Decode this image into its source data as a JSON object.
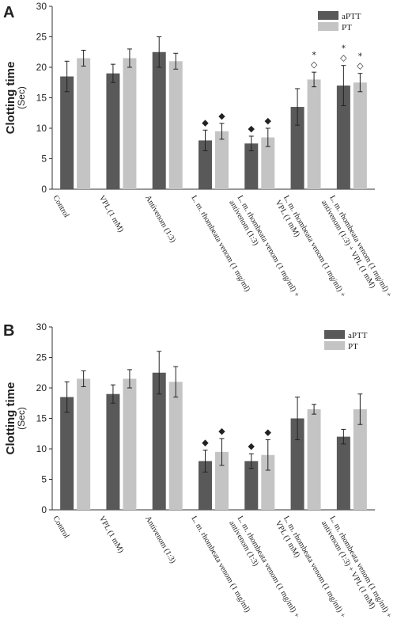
{
  "chart_data": [
    {
      "panel": "A",
      "type": "bar",
      "ylabel": "Clotting time",
      "yunit": "(Sec)",
      "ylim": [
        0,
        30
      ],
      "yticks": [
        0,
        5,
        10,
        15,
        20,
        25,
        30
      ],
      "legend_position": "top-right",
      "categories": [
        [
          "Control"
        ],
        [
          "VPL (1 mM)"
        ],
        [
          "Antivenom (1:3)"
        ],
        [
          "L. m. rhombeata venom (1 mg/ml)"
        ],
        [
          "L. m. rhombeata venom (1 mg/ml) +",
          "antivenom (1:3)"
        ],
        [
          "L. m. rhombeata venom (1 mg/ml) +",
          "VPL (1 mM)"
        ],
        [
          "L. m. rhombeata venom (1 mg/ml) +",
          "antivenom (1:3) + VPL (1 mM)"
        ]
      ],
      "series": [
        {
          "name": "aPTT",
          "color": "#595959",
          "values": [
            18.5,
            19.0,
            22.5,
            8.0,
            7.5,
            13.5,
            17.0
          ],
          "errors": [
            2.5,
            1.5,
            2.5,
            1.7,
            1.2,
            3.0,
            3.3
          ],
          "markers": [
            "",
            "",
            "",
            "◆",
            "◆",
            "",
            "* ◇"
          ]
        },
        {
          "name": "PT",
          "color": "#c4c4c4",
          "values": [
            21.5,
            21.5,
            21.0,
            9.5,
            8.5,
            18.0,
            17.5
          ],
          "errors": [
            1.3,
            1.5,
            1.3,
            1.3,
            1.5,
            1.2,
            1.5
          ],
          "markers": [
            "",
            "",
            "",
            "◆",
            "◆",
            "* ◇",
            "* ◇"
          ]
        }
      ]
    },
    {
      "panel": "B",
      "type": "bar",
      "ylabel": "Clotting time",
      "yunit": "(Sec)",
      "ylim": [
        0,
        30
      ],
      "yticks": [
        0,
        5,
        10,
        15,
        20,
        25,
        30
      ],
      "legend_position": "top-right",
      "categories": [
        [
          "Control"
        ],
        [
          "VPL (1 mM)"
        ],
        [
          "Antivenom (1:3)"
        ],
        [
          "L. m. rhombeata venom (1 mg/ml)"
        ],
        [
          "L. m. rhombeata venom (1 mg/ml) +",
          "antivenom (1:3)"
        ],
        [
          "L. m. rhombeata venom (1 mg/ml) +",
          "VPL (1 mM)"
        ],
        [
          "L. m. rhombeata venom (1 mg/ml) +",
          "antivenom (1:3) + VPL (1 mM)"
        ]
      ],
      "series": [
        {
          "name": "aPTT",
          "color": "#595959",
          "values": [
            18.5,
            19.0,
            22.5,
            8.0,
            8.0,
            15.0,
            12.0
          ],
          "errors": [
            2.5,
            1.5,
            3.5,
            1.8,
            1.2,
            3.5,
            1.2
          ],
          "markers": [
            "",
            "",
            "",
            "◆",
            "◆",
            "",
            ""
          ]
        },
        {
          "name": "PT",
          "color": "#c4c4c4",
          "values": [
            21.5,
            21.5,
            21.0,
            9.5,
            9.0,
            16.5,
            16.5
          ],
          "errors": [
            1.3,
            1.5,
            2.5,
            2.2,
            2.5,
            0.8,
            2.5
          ],
          "markers": [
            "",
            "",
            "",
            "◆",
            "◆",
            "",
            ""
          ]
        }
      ]
    }
  ]
}
